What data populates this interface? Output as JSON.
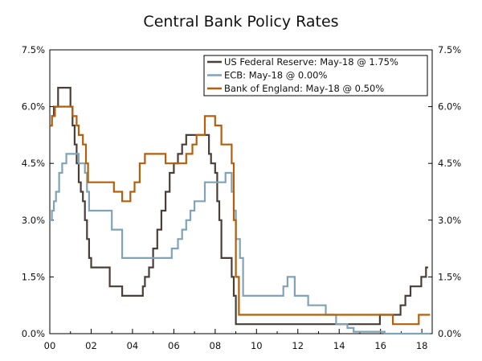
{
  "chart_data": {
    "type": "line",
    "title": "Central Bank Policy Rates",
    "xlabel": "",
    "ylabel": "",
    "xlim": [
      2000.0,
      2018.5
    ],
    "ylim": [
      0,
      7.5
    ],
    "x_ticks": [
      2000,
      2002,
      2004,
      2006,
      2008,
      2010,
      2012,
      2014,
      2016,
      2018
    ],
    "x_tick_labels": [
      "00",
      "02",
      "04",
      "06",
      "08",
      "10",
      "12",
      "14",
      "16",
      "18"
    ],
    "y_ticks": [
      0,
      1.5,
      3.0,
      4.5,
      6.0,
      7.5
    ],
    "y_tick_labels": [
      "0.0%",
      "1.5%",
      "3.0%",
      "4.5%",
      "6.0%",
      "7.5%"
    ],
    "grid": false,
    "legend_position": "top-right",
    "series": [
      {
        "name": "US Federal Reserve: May-18 @ 1.75%",
        "color": "#4a3f38",
        "step": true,
        "x": [
          2000.0,
          2000.1,
          2000.2,
          2000.4,
          2001.0,
          2001.1,
          2001.2,
          2001.3,
          2001.4,
          2001.5,
          2001.6,
          2001.7,
          2001.8,
          2001.9,
          2002.0,
          2002.9,
          2003.5,
          2004.5,
          2004.6,
          2004.8,
          2005.0,
          2005.2,
          2005.4,
          2005.6,
          2005.8,
          2006.0,
          2006.2,
          2006.4,
          2006.6,
          2007.7,
          2007.8,
          2008.0,
          2008.1,
          2008.2,
          2008.3,
          2008.8,
          2008.9,
          2009.0,
          2015.97,
          2016.97,
          2017.2,
          2017.45,
          2017.97,
          2018.2,
          2018.3
        ],
        "y": [
          5.5,
          5.75,
          6.0,
          6.5,
          6.0,
          5.5,
          5.0,
          4.5,
          4.0,
          3.75,
          3.5,
          3.0,
          2.5,
          2.0,
          1.75,
          1.25,
          1.0,
          1.25,
          1.5,
          1.75,
          2.25,
          2.75,
          3.25,
          3.75,
          4.25,
          4.5,
          4.75,
          5.0,
          5.25,
          4.75,
          4.5,
          4.25,
          3.5,
          3.0,
          2.0,
          1.5,
          1.0,
          0.25,
          0.5,
          0.75,
          1.0,
          1.25,
          1.5,
          1.75,
          1.75
        ]
      },
      {
        "name": "ECB: May-18 @ 0.00%",
        "color": "#7fa3b8",
        "step": true,
        "x": [
          2000.0,
          2000.1,
          2000.2,
          2000.3,
          2000.45,
          2000.6,
          2000.8,
          2001.4,
          2001.7,
          2001.8,
          2001.9,
          2003.0,
          2003.5,
          2005.9,
          2006.2,
          2006.4,
          2006.6,
          2006.8,
          2007.0,
          2007.5,
          2008.5,
          2008.8,
          2008.9,
          2009.0,
          2009.2,
          2009.35,
          2011.3,
          2011.5,
          2011.85,
          2012.5,
          2013.35,
          2013.85,
          2014.4,
          2014.7,
          2016.2,
          2018.4
        ],
        "y": [
          3.0,
          3.25,
          3.5,
          3.75,
          4.25,
          4.5,
          4.75,
          4.5,
          4.25,
          3.75,
          3.25,
          2.75,
          2.0,
          2.25,
          2.5,
          2.75,
          3.0,
          3.25,
          3.5,
          4.0,
          4.25,
          3.75,
          3.25,
          2.5,
          2.0,
          1.0,
          1.25,
          1.5,
          1.0,
          0.75,
          0.5,
          0.25,
          0.15,
          0.05,
          0.0,
          0.0
        ]
      },
      {
        "name": "Bank of England: May-18 @ 0.50%",
        "color": "#b35f0c",
        "step": true,
        "x": [
          2000.0,
          2000.1,
          2000.25,
          2001.1,
          2001.3,
          2001.4,
          2001.6,
          2001.75,
          2001.85,
          2003.1,
          2003.5,
          2003.9,
          2004.1,
          2004.35,
          2004.6,
          2005.6,
          2006.6,
          2006.9,
          2007.1,
          2007.5,
          2008.0,
          2008.3,
          2008.8,
          2008.9,
          2009.0,
          2009.15,
          2016.6,
          2017.85,
          2018.4
        ],
        "y": [
          5.5,
          5.75,
          6.0,
          5.75,
          5.5,
          5.25,
          5.0,
          4.5,
          4.0,
          3.75,
          3.5,
          3.75,
          4.0,
          4.5,
          4.75,
          4.5,
          4.75,
          5.0,
          5.25,
          5.75,
          5.5,
          5.0,
          4.5,
          3.0,
          1.5,
          0.5,
          0.25,
          0.5,
          0.5
        ]
      }
    ]
  }
}
